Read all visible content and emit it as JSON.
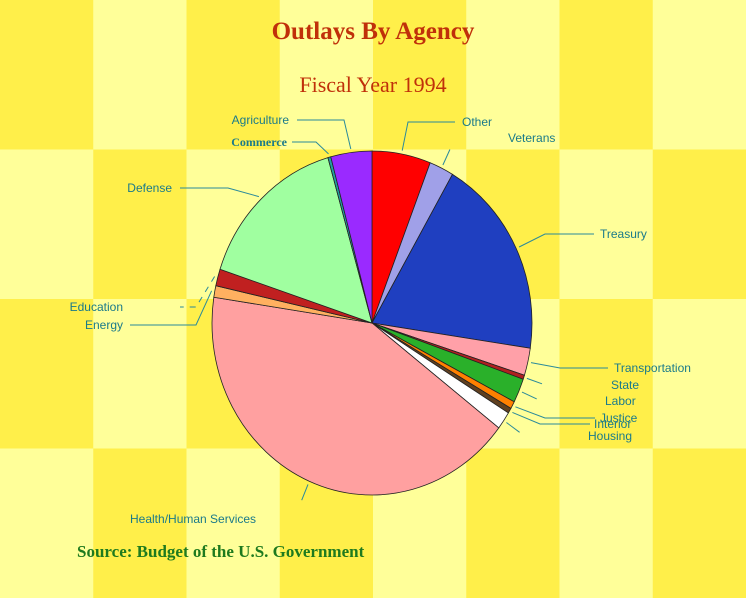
{
  "colors": {
    "background_light": "#ffff99",
    "background_dark": "#ffef4a",
    "title": "#c0300a",
    "source": "#1e7a1e",
    "label": "#1a7a8a"
  },
  "chart_data": {
    "type": "pie",
    "title": "Outlays By Agency",
    "subtitle": "Fiscal Year 1994",
    "source": "Source: Budget of the U.S. Government",
    "slices": [
      {
        "label": "Other",
        "value": 6.0,
        "color": "#ff0000"
      },
      {
        "label": "Veterans",
        "value": 2.5,
        "color": "#a0a0e8"
      },
      {
        "label": "Treasury",
        "value": 19.2,
        "color": "#1f3fc0"
      },
      {
        "label": "Transportation",
        "value": 2.6,
        "color": "#ffa0a8"
      },
      {
        "label": "State",
        "value": 0.4,
        "color": "#b02020"
      },
      {
        "label": "Labor",
        "value": 2.3,
        "color": "#2ab02a"
      },
      {
        "label": "Justice",
        "value": 0.7,
        "color": "#ff8000"
      },
      {
        "label": "Interior",
        "value": 0.5,
        "color": "#604020"
      },
      {
        "label": "Housing",
        "value": 1.7,
        "color": "#ffffff"
      },
      {
        "label": "Health/Human Services",
        "value": 42.5,
        "color": "#ffa0a0"
      },
      {
        "label": "Energy",
        "value": 1.1,
        "color": "#ffb060"
      },
      {
        "label": "Education",
        "value": 1.6,
        "color": "#c02020"
      },
      {
        "label": "Defense",
        "value": 15.7,
        "color": "#a0ffa0"
      },
      {
        "label": "Commerce",
        "value": 0.3,
        "color": "#20a0a0"
      },
      {
        "label": "Agriculture",
        "value": 4.2,
        "color": "#9a2aff"
      }
    ]
  }
}
